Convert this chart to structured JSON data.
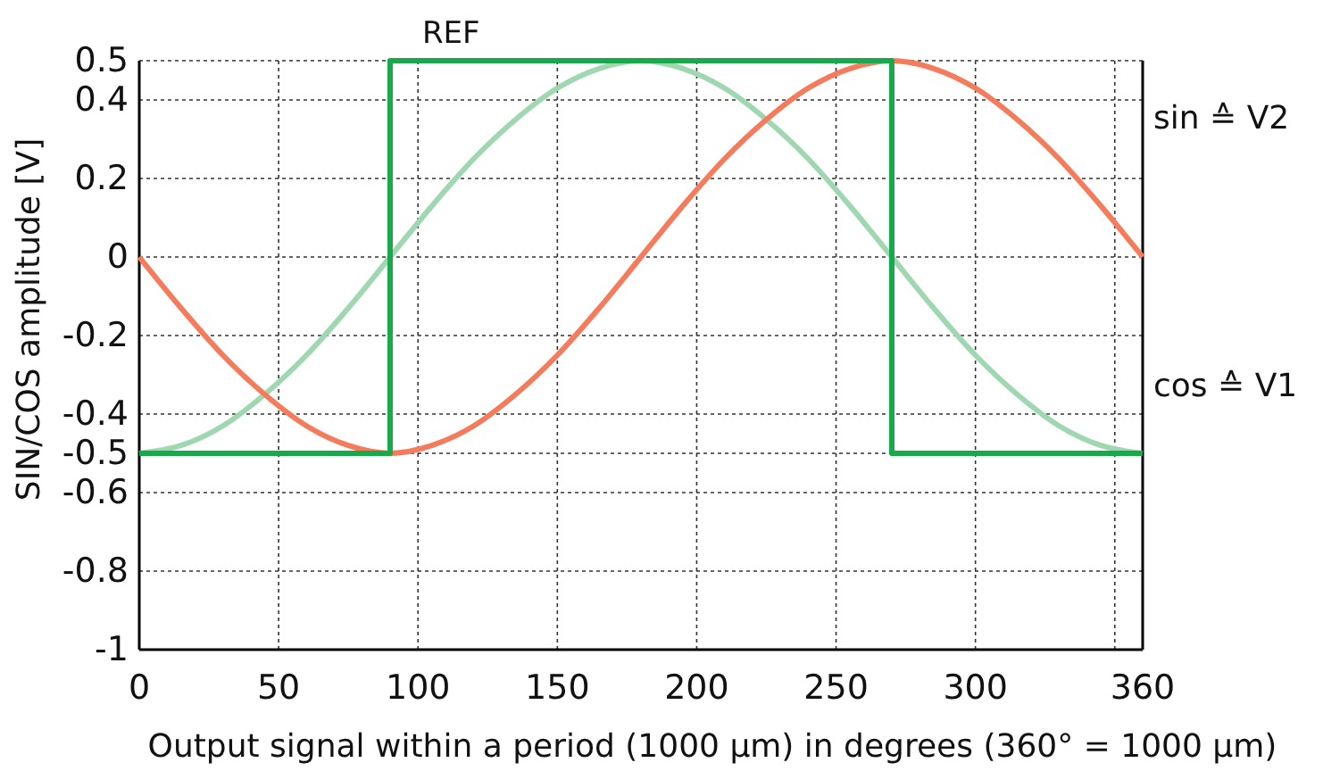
{
  "chart_data": {
    "type": "line",
    "xlabel": "Output signal within a period (1000 µm) in degrees (360° = 1000 µm)",
    "ylabel": "SIN/COS amplitude [V]",
    "x": [
      0,
      15,
      30,
      45,
      60,
      75,
      90,
      105,
      120,
      135,
      150,
      165,
      180,
      195,
      210,
      225,
      240,
      255,
      270,
      285,
      300,
      315,
      330,
      345,
      360
    ],
    "series": [
      {
        "color": "#9fd8b0",
        "values": [
          -0.5,
          -0.48,
          -0.43,
          -0.35,
          -0.25,
          -0.13,
          0,
          0.13,
          0.25,
          0.35,
          0.43,
          0.48,
          0.5,
          0.48,
          0.43,
          0.35,
          0.25,
          0.13,
          0,
          -0.13,
          -0.25,
          -0.35,
          -0.43,
          -0.48,
          -0.5
        ]
      },
      {
        "color": "#f47c5c",
        "values": [
          0,
          -0.13,
          -0.25,
          -0.35,
          -0.43,
          -0.48,
          -0.5,
          -0.48,
          -0.43,
          -0.35,
          -0.25,
          -0.13,
          0,
          0.13,
          0.25,
          0.35,
          0.43,
          0.48,
          0.5,
          0.48,
          0.43,
          0.35,
          0.25,
          0.13,
          0
        ]
      },
      {
        "name": "REF",
        "type": "step",
        "color": "#1aa84c",
        "x": [
          0,
          90,
          270,
          360
        ],
        "values": [
          -0.5,
          0.5,
          -0.5,
          -0.5
        ]
      }
    ],
    "annotations": [
      "sin ≙ V2",
      "cos ≙ V1"
    ],
    "xlim": [
      0,
      360
    ],
    "xticks": [
      0,
      50,
      100,
      150,
      200,
      250,
      300,
      {
        "value": 350,
        "label": null
      },
      360
    ],
    "ylim": [
      -1,
      0.5
    ],
    "yticks": [
      -1,
      -0.8,
      -0.6,
      -0.5,
      -0.4,
      -0.2,
      0,
      0.2,
      0.4,
      0.5
    ],
    "grid": true,
    "marker": "none",
    "line_style": "solid"
  }
}
